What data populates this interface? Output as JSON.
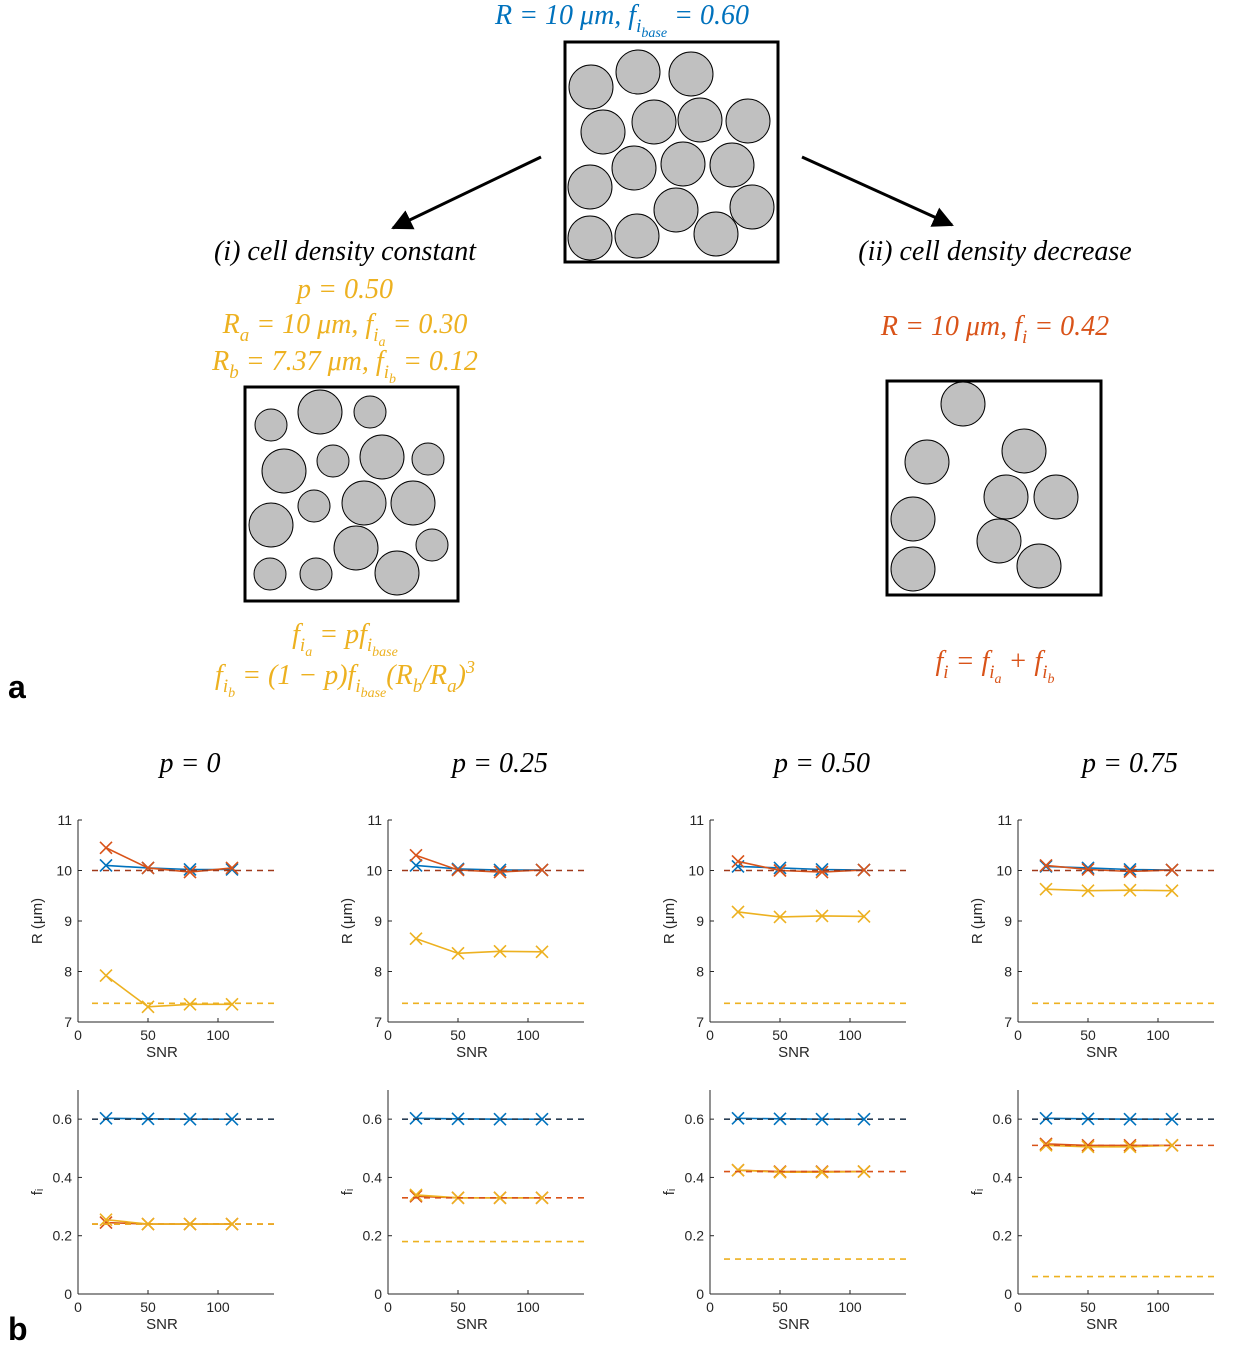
{
  "diagram": {
    "top": [
      {
        "t": "R = 10 μm, f"
      },
      {
        "s": "i"
      },
      {
        "ss": "base"
      },
      {
        "t": " = 0.60"
      }
    ],
    "left_title": [
      {
        "t": "(i) cell density constant"
      }
    ],
    "left_p": [
      {
        "t": "p = 0.50"
      }
    ],
    "left_a": [
      {
        "t": "R"
      },
      {
        "s": "a"
      },
      {
        "t": " = 10 μm, f"
      },
      {
        "s": "i"
      },
      {
        "ss": "a"
      },
      {
        "t": " = 0.30"
      }
    ],
    "left_b": [
      {
        "t": "R"
      },
      {
        "s": "b"
      },
      {
        "t": " = 7.37 μm, f"
      },
      {
        "s": "i"
      },
      {
        "ss": "b"
      },
      {
        "t": " = 0.12"
      }
    ],
    "left_f1": [
      {
        "t": "f"
      },
      {
        "s": "i"
      },
      {
        "ss": "a"
      },
      {
        "t": " = pf"
      },
      {
        "s": "i"
      },
      {
        "ss": "base"
      }
    ],
    "left_f2": [
      {
        "t": "f"
      },
      {
        "s": "i"
      },
      {
        "ss": "b"
      },
      {
        "t": " = (1 − p)f"
      },
      {
        "s": "i"
      },
      {
        "ss": "base"
      },
      {
        "t": "(R"
      },
      {
        "s": "b"
      },
      {
        "t": "/R"
      },
      {
        "s": "a"
      },
      {
        "t": ")"
      },
      {
        "sup": "3"
      }
    ],
    "right_title": [
      {
        "t": "(ii) cell density decrease"
      }
    ],
    "right_r": [
      {
        "t": "R = 10 μm, f"
      },
      {
        "s": "i"
      },
      {
        "t": " = 0.42"
      }
    ],
    "right_f": [
      {
        "t": "f"
      },
      {
        "s": "i"
      },
      {
        "t": " = f"
      },
      {
        "s": "i"
      },
      {
        "ss": "a"
      },
      {
        "t": " + f"
      },
      {
        "s": "i"
      },
      {
        "ss": "b"
      }
    ],
    "label_a": "a",
    "label_b": "b"
  },
  "chart_data": [
    {
      "type": "line",
      "title": "p = 0",
      "xlabel": "SNR",
      "ylabel": "R (μm)",
      "xlim": [
        0,
        140
      ],
      "xticks": [
        0,
        50,
        100
      ],
      "ylim": [
        7,
        11
      ],
      "yticks": [
        7,
        8,
        9,
        10,
        11
      ],
      "series": [
        {
          "color": "#0072BD",
          "x": [
            20,
            50,
            80,
            110
          ],
          "values": [
            10.1,
            10.05,
            10.02,
            10.02
          ]
        },
        {
          "color": "#D95319",
          "x": [
            20,
            50,
            80,
            110
          ],
          "values": [
            10.45,
            10.05,
            9.97,
            10.05
          ]
        },
        {
          "color": "#EDB120",
          "x": [
            20,
            50,
            80,
            110
          ],
          "values": [
            7.92,
            7.3,
            7.35,
            7.35
          ]
        },
        {
          "color": "#A0391A",
          "x": [
            10,
            140
          ],
          "values": [
            10,
            10
          ],
          "dashed": true
        },
        {
          "color": "#EDB120",
          "x": [
            10,
            140
          ],
          "values": [
            7.37,
            7.37
          ],
          "dashed": true
        }
      ]
    },
    {
      "type": "line",
      "title": "p = 0.25",
      "xlabel": "SNR",
      "ylabel": "R (μm)",
      "xlim": [
        0,
        140
      ],
      "xticks": [
        0,
        50,
        100
      ],
      "ylim": [
        7,
        11
      ],
      "yticks": [
        7,
        8,
        9,
        10,
        11
      ],
      "series": [
        {
          "color": "#0072BD",
          "x": [
            20,
            50,
            80,
            110
          ],
          "values": [
            10.1,
            10.03,
            10.01,
            10.01
          ]
        },
        {
          "color": "#D95319",
          "x": [
            20,
            50,
            80,
            110
          ],
          "values": [
            10.3,
            10.01,
            9.97,
            10.01
          ]
        },
        {
          "color": "#EDB120",
          "x": [
            20,
            50,
            80,
            110
          ],
          "values": [
            8.65,
            8.36,
            8.4,
            8.39
          ]
        },
        {
          "color": "#A0391A",
          "x": [
            10,
            140
          ],
          "values": [
            10,
            10
          ],
          "dashed": true
        },
        {
          "color": "#EDB120",
          "x": [
            10,
            140
          ],
          "values": [
            7.37,
            7.37
          ],
          "dashed": true
        }
      ]
    },
    {
      "type": "line",
      "title": "p = 0.50",
      "xlabel": "SNR",
      "ylabel": "R (μm)",
      "xlim": [
        0,
        140
      ],
      "xticks": [
        0,
        50,
        100
      ],
      "ylim": [
        7,
        11
      ],
      "yticks": [
        7,
        8,
        9,
        10,
        11
      ],
      "series": [
        {
          "color": "#0072BD",
          "x": [
            20,
            50,
            80,
            110
          ],
          "values": [
            10.08,
            10.05,
            10.02,
            10.01
          ]
        },
        {
          "color": "#D95319",
          "x": [
            20,
            50,
            80,
            110
          ],
          "values": [
            10.18,
            10.0,
            9.97,
            10.01
          ]
        },
        {
          "color": "#EDB120",
          "x": [
            20,
            50,
            80,
            110
          ],
          "values": [
            9.18,
            9.08,
            9.1,
            9.09
          ]
        },
        {
          "color": "#A0391A",
          "x": [
            10,
            140
          ],
          "values": [
            10,
            10
          ],
          "dashed": true
        },
        {
          "color": "#EDB120",
          "x": [
            10,
            140
          ],
          "values": [
            7.37,
            7.37
          ],
          "dashed": true
        }
      ]
    },
    {
      "type": "line",
      "title": "p = 0.75",
      "xlabel": "SNR",
      "ylabel": "R (μm)",
      "xlim": [
        0,
        140
      ],
      "xticks": [
        0,
        50,
        100
      ],
      "ylim": [
        7,
        11
      ],
      "yticks": [
        7,
        8,
        9,
        10,
        11
      ],
      "series": [
        {
          "color": "#0072BD",
          "x": [
            20,
            50,
            80,
            110
          ],
          "values": [
            10.08,
            10.05,
            10.02,
            10.01
          ]
        },
        {
          "color": "#D95319",
          "x": [
            20,
            50,
            80,
            110
          ],
          "values": [
            10.1,
            10.02,
            9.98,
            10.01
          ]
        },
        {
          "color": "#EDB120",
          "x": [
            20,
            50,
            80,
            110
          ],
          "values": [
            9.63,
            9.6,
            9.61,
            9.6
          ]
        },
        {
          "color": "#A0391A",
          "x": [
            10,
            140
          ],
          "values": [
            10,
            10
          ],
          "dashed": true
        },
        {
          "color": "#EDB120",
          "x": [
            10,
            140
          ],
          "values": [
            7.37,
            7.37
          ],
          "dashed": true
        }
      ]
    },
    {
      "type": "line",
      "xlabel": "SNR",
      "ylabel": "fᵢ",
      "xlim": [
        0,
        140
      ],
      "xticks": [
        0,
        50,
        100
      ],
      "ylim": [
        0,
        0.7
      ],
      "yticks": [
        0,
        0.2,
        0.4,
        0.6
      ],
      "series": [
        {
          "color": "#0072BD",
          "x": [
            20,
            50,
            80,
            110
          ],
          "values": [
            0.603,
            0.601,
            0.6,
            0.6
          ]
        },
        {
          "color": "#D95319",
          "x": [
            20,
            50,
            80,
            110
          ],
          "values": [
            0.245,
            0.24,
            0.24,
            0.24
          ]
        },
        {
          "color": "#EDB120",
          "x": [
            20,
            50,
            80,
            110
          ],
          "values": [
            0.255,
            0.24,
            0.24,
            0.24
          ]
        },
        {
          "color": "#2a3f55",
          "x": [
            10,
            140
          ],
          "values": [
            0.6,
            0.6
          ],
          "dashed": true
        },
        {
          "color": "#D95319",
          "x": [
            10,
            140
          ],
          "values": [
            0.24,
            0.24
          ],
          "dashed": true
        },
        {
          "color": "#EDB120",
          "x": [
            10,
            140
          ],
          "values": [
            0.24,
            0.24
          ],
          "dashed": true
        }
      ]
    },
    {
      "type": "line",
      "xlabel": "SNR",
      "ylabel": "fᵢ",
      "xlim": [
        0,
        140
      ],
      "xticks": [
        0,
        50,
        100
      ],
      "ylim": [
        0,
        0.7
      ],
      "yticks": [
        0,
        0.2,
        0.4,
        0.6
      ],
      "series": [
        {
          "color": "#0072BD",
          "x": [
            20,
            50,
            80,
            110
          ],
          "values": [
            0.603,
            0.601,
            0.6,
            0.6
          ]
        },
        {
          "color": "#D95319",
          "x": [
            20,
            50,
            80,
            110
          ],
          "values": [
            0.335,
            0.33,
            0.33,
            0.33
          ]
        },
        {
          "color": "#EDB120",
          "x": [
            20,
            50,
            80,
            110
          ],
          "values": [
            0.34,
            0.33,
            0.33,
            0.33
          ]
        },
        {
          "color": "#2a3f55",
          "x": [
            10,
            140
          ],
          "values": [
            0.6,
            0.6
          ],
          "dashed": true
        },
        {
          "color": "#D95319",
          "x": [
            10,
            140
          ],
          "values": [
            0.33,
            0.33
          ],
          "dashed": true
        },
        {
          "color": "#EDB120",
          "x": [
            10,
            140
          ],
          "values": [
            0.18,
            0.18
          ],
          "dashed": true
        }
      ]
    },
    {
      "type": "line",
      "xlabel": "SNR",
      "ylabel": "fᵢ",
      "xlim": [
        0,
        140
      ],
      "xticks": [
        0,
        50,
        100
      ],
      "ylim": [
        0,
        0.7
      ],
      "yticks": [
        0,
        0.2,
        0.4,
        0.6
      ],
      "series": [
        {
          "color": "#0072BD",
          "x": [
            20,
            50,
            80,
            110
          ],
          "values": [
            0.603,
            0.601,
            0.6,
            0.6
          ]
        },
        {
          "color": "#D95319",
          "x": [
            20,
            50,
            80,
            110
          ],
          "values": [
            0.425,
            0.42,
            0.42,
            0.42
          ]
        },
        {
          "color": "#EDB120",
          "x": [
            20,
            50,
            80,
            110
          ],
          "values": [
            0.425,
            0.418,
            0.418,
            0.42
          ]
        },
        {
          "color": "#2a3f55",
          "x": [
            10,
            140
          ],
          "values": [
            0.6,
            0.6
          ],
          "dashed": true
        },
        {
          "color": "#D95319",
          "x": [
            10,
            140
          ],
          "values": [
            0.42,
            0.42
          ],
          "dashed": true
        },
        {
          "color": "#EDB120",
          "x": [
            10,
            140
          ],
          "values": [
            0.12,
            0.12
          ],
          "dashed": true
        }
      ]
    },
    {
      "type": "line",
      "xlabel": "SNR",
      "ylabel": "fᵢ",
      "xlim": [
        0,
        140
      ],
      "xticks": [
        0,
        50,
        100
      ],
      "ylim": [
        0,
        0.7
      ],
      "yticks": [
        0,
        0.2,
        0.4,
        0.6
      ],
      "series": [
        {
          "color": "#0072BD",
          "x": [
            20,
            50,
            80,
            110
          ],
          "values": [
            0.603,
            0.601,
            0.6,
            0.6
          ]
        },
        {
          "color": "#D95319",
          "x": [
            20,
            50,
            80,
            110
          ],
          "values": [
            0.515,
            0.51,
            0.51,
            0.51
          ]
        },
        {
          "color": "#EDB120",
          "x": [
            20,
            50,
            80,
            110
          ],
          "values": [
            0.51,
            0.505,
            0.505,
            0.51
          ]
        },
        {
          "color": "#2a3f55",
          "x": [
            10,
            140
          ],
          "values": [
            0.6,
            0.6
          ],
          "dashed": true
        },
        {
          "color": "#D95319",
          "x": [
            10,
            140
          ],
          "values": [
            0.51,
            0.51
          ],
          "dashed": true
        },
        {
          "color": "#EDB120",
          "x": [
            10,
            140
          ],
          "values": [
            0.06,
            0.06
          ],
          "dashed": true
        }
      ]
    }
  ]
}
